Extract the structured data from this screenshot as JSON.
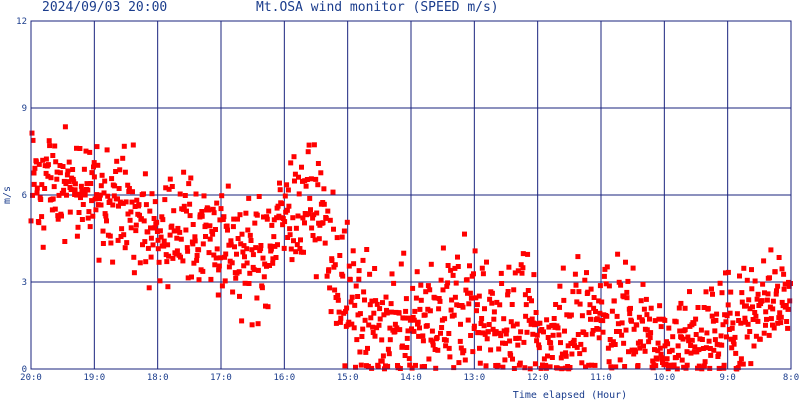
{
  "header": {
    "timestamp": "2024/09/03 20:00",
    "title": "Mt.OSA wind monitor (SPEED m/s)"
  },
  "chart_data": {
    "type": "scatter",
    "xlabel": "Time elapsed (Hour)",
    "ylabel": "m/s",
    "ylim": [
      0,
      12
    ],
    "yticks": [
      0,
      3,
      6,
      9,
      12
    ],
    "xlim": [
      0,
      12
    ],
    "xticks": [
      "20:0",
      "19:0",
      "18:0",
      "17:0",
      "16:0",
      "15:0",
      "14:0",
      "13:0",
      "12:0",
      "11:0",
      "10:0",
      "9:0",
      "8:0"
    ],
    "grid": true,
    "marker_color": "#ff0000",
    "grid_color": "#1a237e",
    "profile_hours": [
      0,
      0.5,
      1,
      1.5,
      2,
      2.5,
      3,
      3.5,
      3.75,
      4,
      4.5,
      5,
      5.5,
      6,
      6.5,
      7,
      7.5,
      8,
      8.5,
      9,
      9.5,
      10,
      10.5,
      11,
      11.5,
      12
    ],
    "profile_mean_ms": [
      6.2,
      6.5,
      6.0,
      5.6,
      4.6,
      5.0,
      4.4,
      3.6,
      4.1,
      5.3,
      5.8,
      2.3,
      1.2,
      1.3,
      2.0,
      2.2,
      1.6,
      1.1,
      1.2,
      1.8,
      1.6,
      0.7,
      1.0,
      1.3,
      2.3,
      2.6
    ],
    "profile_spread_ms": [
      0.8,
      0.9,
      0.8,
      1.0,
      1.1,
      1.0,
      1.0,
      1.0,
      1.0,
      1.0,
      1.0,
      1.2,
      1.1,
      1.0,
      1.2,
      1.2,
      1.1,
      1.0,
      1.1,
      1.2,
      1.1,
      0.7,
      0.8,
      1.0,
      0.8,
      0.8
    ],
    "approx_point_count": 1200
  }
}
